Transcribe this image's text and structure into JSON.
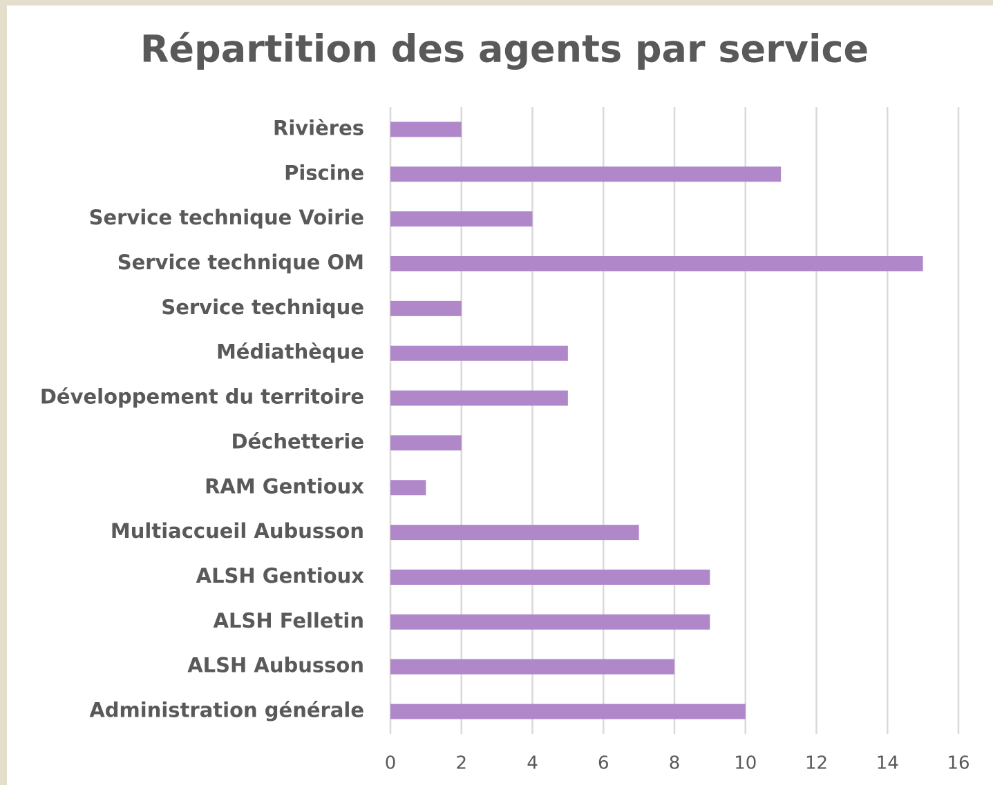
{
  "chart_data": {
    "type": "hbar",
    "title": "Répartition des agents par service",
    "categories": [
      "Rivières",
      "Piscine",
      "Service technique Voirie",
      "Service technique OM",
      "Service technique",
      "Médiathèque",
      "Développement du territoire",
      "Déchetterie",
      "RAM Gentioux",
      "Multiaccueil Aubusson",
      "ALSH Gentioux",
      "ALSH Felletin",
      "ALSH Aubusson",
      "Administration générale"
    ],
    "values": [
      2,
      11,
      4,
      15,
      2,
      5,
      5,
      2,
      1,
      7,
      9,
      9,
      8,
      10
    ],
    "color": "#b088c9",
    "xlim": [
      0,
      16
    ],
    "xticks": [
      0,
      2,
      4,
      6,
      8,
      10,
      12,
      14,
      16
    ],
    "grid": true
  }
}
